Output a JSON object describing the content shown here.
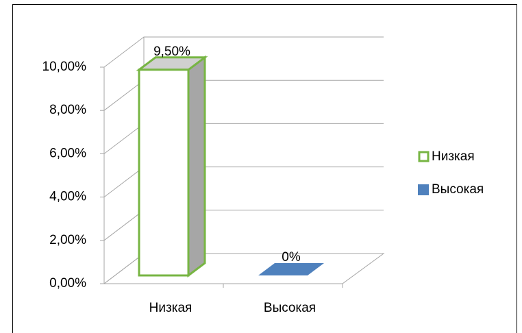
{
  "chart_data": {
    "type": "bar3d",
    "categories": [
      "Низкая",
      "Высокая"
    ],
    "series": [
      {
        "name": "Низкая",
        "color": "#77b543",
        "values": [
          9.5,
          null
        ],
        "value_labels": [
          "9,50%",
          null
        ]
      },
      {
        "name": "Высокая",
        "color": "#4f81bd",
        "values": [
          null,
          0
        ],
        "value_labels": [
          null,
          "0%"
        ]
      }
    ],
    "ylim": [
      0,
      10
    ],
    "yticks": [
      {
        "value": 0,
        "label": "0,00%"
      },
      {
        "value": 2,
        "label": "2,00%"
      },
      {
        "value": 4,
        "label": "4,00%"
      },
      {
        "value": 6,
        "label": "6,00%"
      },
      {
        "value": 8,
        "label": "8,00%"
      },
      {
        "value": 10,
        "label": "10,00%"
      }
    ],
    "grid": true,
    "legend": "right"
  }
}
